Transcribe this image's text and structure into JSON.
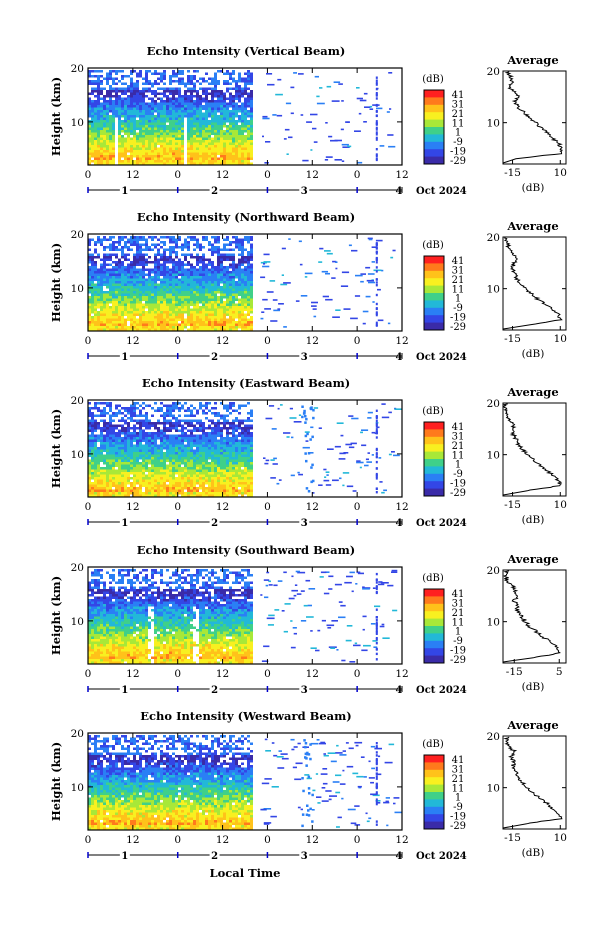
{
  "colorbar": {
    "unit": "(dB)",
    "labels": [
      "41",
      "31",
      "21",
      "11",
      "1",
      "-9",
      "-19",
      "-29"
    ],
    "colors": [
      "#ff2020",
      "#ff7a1c",
      "#ffc21a",
      "#f8f020",
      "#a8e838",
      "#3fd089",
      "#22b8d8",
      "#2a7ff5",
      "#3346e6",
      "#3a2ba8"
    ]
  },
  "x_axis": {
    "hour_ticks": [
      "0",
      "12",
      "0",
      "12",
      "0",
      "12",
      "0",
      "12"
    ],
    "day_ticks": [
      "1",
      "2",
      "3",
      "4"
    ],
    "month_label": "Oct 2024",
    "xlabel": "Local Time"
  },
  "y_axis": {
    "label": "Height (km)",
    "ticks": [
      "20",
      "10"
    ]
  },
  "average": {
    "title": "Average",
    "xlabel": "(dB)"
  },
  "chart_data": [
    {
      "type": "heatmap",
      "title": "Echo Intensity (Vertical Beam)",
      "avg_xticks": [
        "-15",
        "10"
      ],
      "avg_xlim": [
        -20,
        13
      ],
      "avg_profile": [
        [
          3,
          -14
        ],
        [
          4,
          10
        ],
        [
          5,
          11
        ],
        [
          6,
          9
        ],
        [
          7,
          6
        ],
        [
          8,
          3
        ],
        [
          9,
          0
        ],
        [
          10,
          -3
        ],
        [
          11,
          -6
        ],
        [
          12,
          -9
        ],
        [
          13,
          -12
        ],
        [
          14,
          -14
        ],
        [
          15,
          -12
        ],
        [
          16,
          -14
        ],
        [
          17,
          -17
        ],
        [
          18,
          -15
        ],
        [
          19,
          -16
        ],
        [
          20,
          -18
        ]
      ],
      "ylim": [
        2,
        20
      ],
      "xlim": [
        0,
        84
      ]
    },
    {
      "type": "heatmap",
      "title": "Echo Intensity (Northward Beam)",
      "avg_xticks": [
        "-15",
        "10"
      ],
      "avg_xlim": [
        -20,
        13
      ],
      "avg_profile": [
        [
          3,
          -6
        ],
        [
          4,
          10
        ],
        [
          5,
          9
        ],
        [
          6,
          6
        ],
        [
          7,
          2
        ],
        [
          8,
          -2
        ],
        [
          9,
          -5
        ],
        [
          10,
          -8
        ],
        [
          11,
          -11
        ],
        [
          12,
          -13
        ],
        [
          13,
          -14
        ],
        [
          14,
          -15
        ],
        [
          15,
          -14
        ],
        [
          16,
          -13
        ],
        [
          17,
          -16
        ],
        [
          18,
          -17
        ],
        [
          19,
          -18
        ],
        [
          20,
          -19
        ]
      ],
      "ylim": [
        2,
        20
      ],
      "xlim": [
        0,
        84
      ]
    },
    {
      "type": "heatmap",
      "title": "Echo Intensity (Eastward Beam)",
      "avg_xticks": [
        "-15",
        "10"
      ],
      "avg_xlim": [
        -20,
        13
      ],
      "avg_profile": [
        [
          3,
          -8
        ],
        [
          4,
          10
        ],
        [
          5,
          9
        ],
        [
          6,
          6
        ],
        [
          7,
          3
        ],
        [
          8,
          -1
        ],
        [
          9,
          -4
        ],
        [
          10,
          -7
        ],
        [
          11,
          -10
        ],
        [
          12,
          -12
        ],
        [
          13,
          -13
        ],
        [
          14,
          -15
        ],
        [
          15,
          -14
        ],
        [
          16,
          -15
        ],
        [
          17,
          -17
        ],
        [
          18,
          -18
        ],
        [
          19,
          -19
        ],
        [
          20,
          -18
        ]
      ],
      "ylim": [
        2,
        20
      ],
      "xlim": [
        0,
        84
      ]
    },
    {
      "type": "heatmap",
      "title": "Echo Intensity (Southward Beam)",
      "avg_xticks": [
        "-15",
        "5"
      ],
      "avg_xlim": [
        -20,
        8
      ],
      "avg_profile": [
        [
          3,
          -6
        ],
        [
          4,
          5
        ],
        [
          5,
          4
        ],
        [
          6,
          1
        ],
        [
          7,
          -2
        ],
        [
          8,
          -5
        ],
        [
          9,
          -8
        ],
        [
          10,
          -10
        ],
        [
          11,
          -12
        ],
        [
          12,
          -13
        ],
        [
          13,
          -14
        ],
        [
          14,
          -15
        ],
        [
          15,
          -13
        ],
        [
          16,
          -15
        ],
        [
          17,
          -16
        ],
        [
          18,
          -18
        ],
        [
          19,
          -19
        ],
        [
          20,
          -18
        ]
      ],
      "ylim": [
        2,
        20
      ],
      "xlim": [
        0,
        84
      ]
    },
    {
      "type": "heatmap",
      "title": "Echo Intensity (Westward Beam)",
      "avg_xticks": [
        "-15",
        "10"
      ],
      "avg_xlim": [
        -20,
        13
      ],
      "avg_profile": [
        [
          3,
          -8
        ],
        [
          4,
          10
        ],
        [
          5,
          9
        ],
        [
          6,
          6
        ],
        [
          7,
          3
        ],
        [
          8,
          -1
        ],
        [
          9,
          -4
        ],
        [
          10,
          -7
        ],
        [
          11,
          -10
        ],
        [
          12,
          -12
        ],
        [
          13,
          -13
        ],
        [
          14,
          -15
        ],
        [
          15,
          -14
        ],
        [
          16,
          -16
        ],
        [
          17,
          -14
        ],
        [
          18,
          -17
        ],
        [
          19,
          -18
        ],
        [
          20,
          -18
        ]
      ],
      "ylim": [
        2,
        20
      ],
      "xlim": [
        0,
        84
      ]
    }
  ]
}
